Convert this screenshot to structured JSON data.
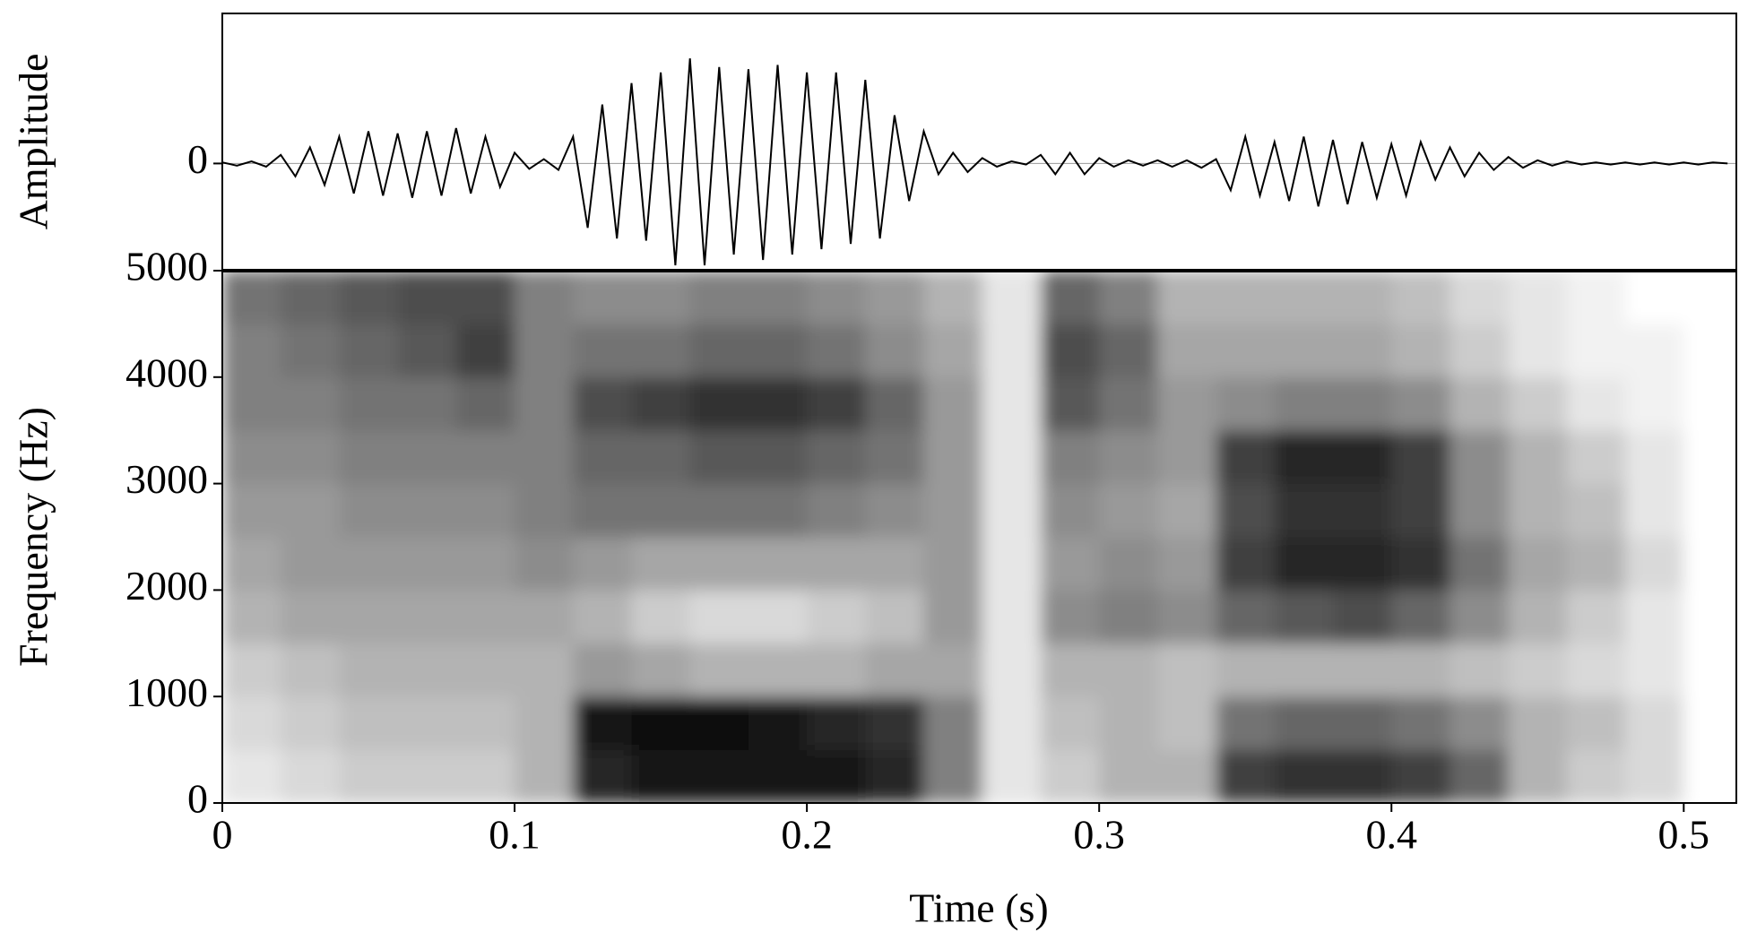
{
  "chart_data": [
    {
      "type": "line",
      "ylabel": "Amplitude",
      "color": "#000000",
      "xlim": [
        0,
        0.518
      ],
      "ylim": [
        -1,
        1.4
      ],
      "yticks": [
        0
      ],
      "x": [
        0,
        0.005,
        0.01,
        0.015,
        0.02,
        0.025,
        0.03,
        0.035,
        0.04,
        0.045,
        0.05,
        0.055,
        0.06,
        0.065,
        0.07,
        0.075,
        0.08,
        0.085,
        0.09,
        0.095,
        0.1,
        0.105,
        0.11,
        0.115,
        0.12,
        0.125,
        0.13,
        0.135,
        0.14,
        0.145,
        0.15,
        0.155,
        0.16,
        0.165,
        0.17,
        0.175,
        0.18,
        0.185,
        0.19,
        0.195,
        0.2,
        0.205,
        0.21,
        0.215,
        0.22,
        0.225,
        0.23,
        0.235,
        0.24,
        0.245,
        0.25,
        0.255,
        0.26,
        0.265,
        0.27,
        0.275,
        0.28,
        0.285,
        0.29,
        0.295,
        0.3,
        0.305,
        0.31,
        0.315,
        0.32,
        0.325,
        0.33,
        0.335,
        0.34,
        0.345,
        0.35,
        0.355,
        0.36,
        0.365,
        0.37,
        0.375,
        0.38,
        0.385,
        0.39,
        0.395,
        0.4,
        0.405,
        0.41,
        0.415,
        0.42,
        0.425,
        0.43,
        0.435,
        0.44,
        0.445,
        0.45,
        0.455,
        0.46,
        0.465,
        0.47,
        0.475,
        0.48,
        0.485,
        0.49,
        0.495,
        0.5,
        0.505,
        0.51,
        0.515
      ],
      "values": [
        0.01,
        -0.02,
        0.02,
        -0.03,
        0.08,
        -0.12,
        0.15,
        -0.2,
        0.25,
        -0.28,
        0.3,
        -0.3,
        0.28,
        -0.32,
        0.3,
        -0.3,
        0.33,
        -0.28,
        0.25,
        -0.22,
        0.1,
        -0.05,
        0.04,
        -0.06,
        0.25,
        -0.6,
        0.55,
        -0.7,
        0.75,
        -0.72,
        0.85,
        -0.95,
        0.98,
        -0.95,
        0.9,
        -0.85,
        0.88,
        -0.9,
        0.92,
        -0.85,
        0.85,
        -0.8,
        0.85,
        -0.75,
        0.78,
        -0.7,
        0.45,
        -0.35,
        0.3,
        -0.1,
        0.1,
        -0.08,
        0.05,
        -0.03,
        0.02,
        -0.01,
        0.08,
        -0.1,
        0.1,
        -0.1,
        0.05,
        -0.03,
        0.03,
        -0.02,
        0.03,
        -0.03,
        0.03,
        -0.04,
        0.04,
        -0.25,
        0.25,
        -0.3,
        0.2,
        -0.35,
        0.25,
        -0.4,
        0.22,
        -0.38,
        0.2,
        -0.32,
        0.18,
        -0.3,
        0.2,
        -0.15,
        0.15,
        -0.12,
        0.1,
        -0.06,
        0.06,
        -0.04,
        0.03,
        -0.02,
        0.02,
        -0.01,
        0.01,
        -0.01,
        0.01,
        -0.01,
        0.01,
        -0.01,
        0.01,
        -0.01,
        0.01,
        0
      ]
    },
    {
      "type": "heatmap",
      "xlabel": "Time (s)",
      "ylabel": "Frequency (Hz)",
      "xlim": [
        0,
        0.518
      ],
      "xticks": [
        0,
        0.1,
        0.2,
        0.3,
        0.4,
        0.5
      ],
      "ylim": [
        0,
        5000
      ],
      "yticks": [
        0,
        1000,
        2000,
        3000,
        4000,
        5000
      ],
      "x": [
        0.01,
        0.03,
        0.05,
        0.07,
        0.09,
        0.11,
        0.13,
        0.15,
        0.17,
        0.19,
        0.21,
        0.23,
        0.25,
        0.27,
        0.29,
        0.31,
        0.33,
        0.35,
        0.37,
        0.39,
        0.41,
        0.43,
        0.45,
        0.47,
        0.49,
        0.51
      ],
      "y": [
        250,
        750,
        1250,
        1750,
        2250,
        2750,
        3250,
        3750,
        4250,
        4750
      ],
      "values": [
        [
          0.1,
          0.15,
          0.2,
          0.2,
          0.2,
          0.3,
          0.85,
          0.9,
          0.9,
          0.9,
          0.9,
          0.85,
          0.5,
          0.1,
          0.2,
          0.3,
          0.3,
          0.75,
          0.8,
          0.8,
          0.75,
          0.6,
          0.3,
          0.2,
          0.15,
          0
        ],
        [
          0.15,
          0.2,
          0.25,
          0.25,
          0.25,
          0.3,
          0.9,
          0.95,
          0.95,
          0.9,
          0.85,
          0.8,
          0.5,
          0.1,
          0.25,
          0.3,
          0.25,
          0.55,
          0.6,
          0.6,
          0.55,
          0.45,
          0.3,
          0.25,
          0.15,
          0
        ],
        [
          0.2,
          0.25,
          0.3,
          0.3,
          0.3,
          0.3,
          0.4,
          0.35,
          0.3,
          0.3,
          0.3,
          0.35,
          0.35,
          0.1,
          0.3,
          0.3,
          0.25,
          0.3,
          0.3,
          0.3,
          0.3,
          0.25,
          0.2,
          0.15,
          0.1,
          0
        ],
        [
          0.3,
          0.35,
          0.35,
          0.35,
          0.35,
          0.35,
          0.3,
          0.2,
          0.15,
          0.15,
          0.2,
          0.25,
          0.4,
          0.1,
          0.45,
          0.5,
          0.45,
          0.6,
          0.65,
          0.7,
          0.6,
          0.45,
          0.3,
          0.2,
          0.1,
          0
        ],
        [
          0.35,
          0.4,
          0.4,
          0.4,
          0.4,
          0.45,
          0.4,
          0.35,
          0.35,
          0.35,
          0.35,
          0.35,
          0.4,
          0.1,
          0.4,
          0.45,
          0.4,
          0.75,
          0.85,
          0.85,
          0.8,
          0.55,
          0.35,
          0.3,
          0.15,
          0
        ],
        [
          0.4,
          0.4,
          0.45,
          0.45,
          0.45,
          0.5,
          0.55,
          0.55,
          0.55,
          0.55,
          0.5,
          0.45,
          0.4,
          0.1,
          0.45,
          0.4,
          0.35,
          0.7,
          0.8,
          0.8,
          0.75,
          0.45,
          0.3,
          0.25,
          0.1,
          0
        ],
        [
          0.45,
          0.45,
          0.5,
          0.5,
          0.5,
          0.5,
          0.6,
          0.6,
          0.65,
          0.65,
          0.6,
          0.55,
          0.4,
          0.1,
          0.5,
          0.45,
          0.4,
          0.75,
          0.85,
          0.85,
          0.75,
          0.45,
          0.3,
          0.2,
          0.1,
          0
        ],
        [
          0.5,
          0.5,
          0.55,
          0.55,
          0.6,
          0.5,
          0.7,
          0.75,
          0.8,
          0.8,
          0.75,
          0.6,
          0.4,
          0.1,
          0.65,
          0.55,
          0.4,
          0.45,
          0.5,
          0.5,
          0.45,
          0.3,
          0.2,
          0.1,
          0.05,
          0
        ],
        [
          0.5,
          0.55,
          0.6,
          0.65,
          0.75,
          0.5,
          0.55,
          0.55,
          0.6,
          0.6,
          0.55,
          0.45,
          0.35,
          0.1,
          0.7,
          0.6,
          0.35,
          0.35,
          0.35,
          0.35,
          0.3,
          0.2,
          0.1,
          0.05,
          0.05,
          0
        ],
        [
          0.55,
          0.6,
          0.65,
          0.7,
          0.7,
          0.5,
          0.45,
          0.45,
          0.5,
          0.5,
          0.45,
          0.4,
          0.3,
          0.1,
          0.6,
          0.5,
          0.3,
          0.3,
          0.3,
          0.3,
          0.25,
          0.15,
          0.1,
          0.05,
          0,
          0
        ]
      ]
    }
  ]
}
